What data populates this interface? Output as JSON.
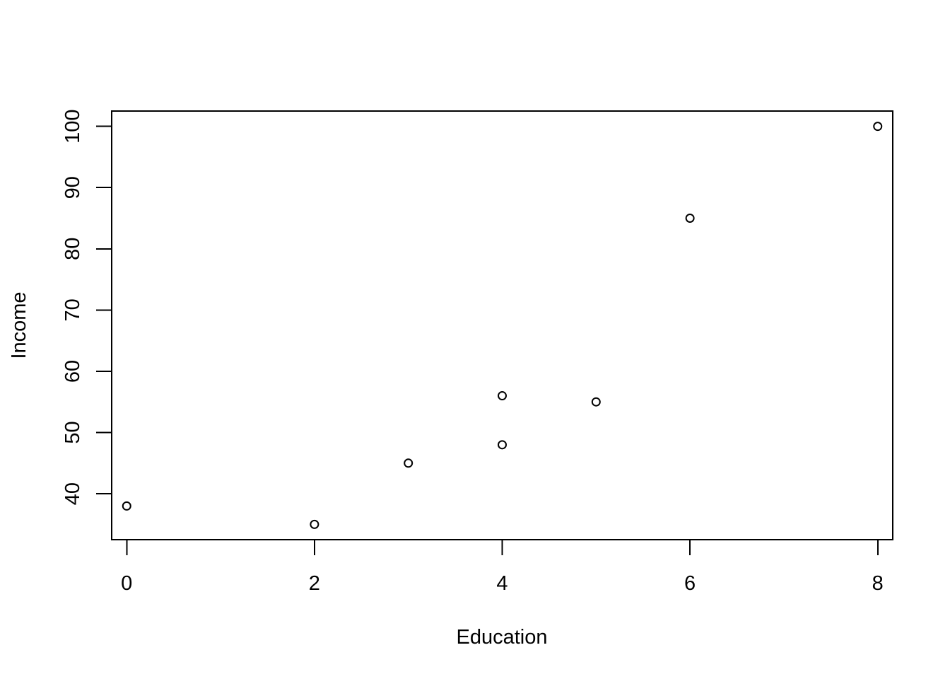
{
  "chart_data": {
    "type": "scatter",
    "title": "",
    "xlabel": "Education",
    "ylabel": "Income",
    "xlim": [
      -0.16,
      8.16
    ],
    "ylim": [
      32.5,
      102.5
    ],
    "x_ticks": [
      0,
      2,
      4,
      6,
      8
    ],
    "y_ticks": [
      40,
      50,
      60,
      70,
      80,
      90,
      100
    ],
    "grid": false,
    "legend": "none",
    "marker": "open-circle",
    "colors": {
      "marker": "#000000",
      "axis": "#000000",
      "background": "#ffffff"
    },
    "points": [
      {
        "x": 0,
        "y": 38
      },
      {
        "x": 2,
        "y": 35
      },
      {
        "x": 3,
        "y": 45
      },
      {
        "x": 4,
        "y": 56
      },
      {
        "x": 4,
        "y": 48
      },
      {
        "x": 5,
        "y": 55
      },
      {
        "x": 6,
        "y": 85
      },
      {
        "x": 8,
        "y": 100
      }
    ]
  }
}
